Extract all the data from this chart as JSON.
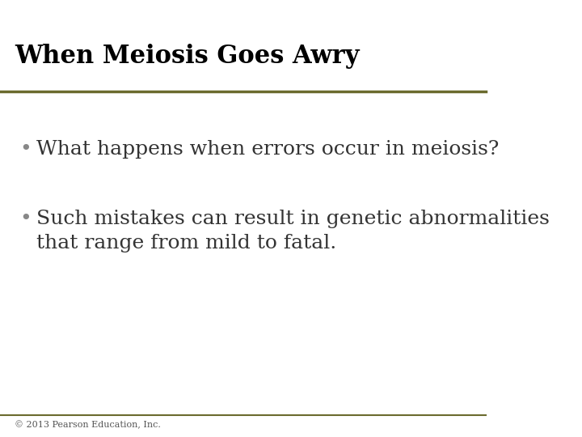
{
  "title": "When Meiosis Goes Awry",
  "title_fontsize": 22,
  "title_color": "#000000",
  "title_font": "serif",
  "bullet1": "What happens when errors occur in meiosis?",
  "bullet2_line1": "Such mistakes can result in genetic abnormalities",
  "bullet2_line2": "that range from mild to fatal.",
  "bullet_fontsize": 18,
  "bullet_color": "#333333",
  "bullet_font": "serif",
  "footer": "© 2013 Pearson Education, Inc.",
  "footer_fontsize": 8,
  "footer_color": "#555555",
  "background_color": "#ffffff",
  "title_line_color": "#6b6b2e",
  "footer_line_color": "#6b6b2e",
  "bullet_dot_color": "#888888"
}
